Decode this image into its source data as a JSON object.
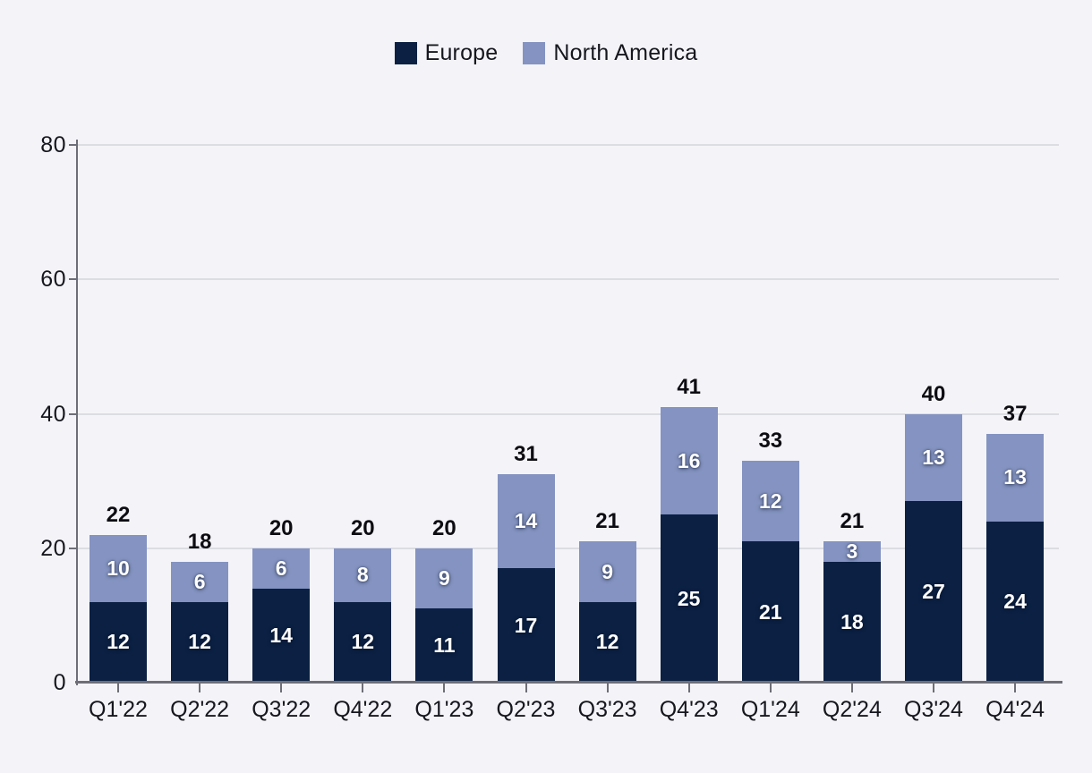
{
  "colors": {
    "background": "#f4f4f8",
    "gridline": "#dcdce3",
    "axis": "#6e6e78",
    "axis_label": "#16161e",
    "total_label": "#0c0c12",
    "segment_label": "#ffffff",
    "europe": "#0b2043",
    "north_america": "#8493c1"
  },
  "chart_data": {
    "type": "bar",
    "stacked": true,
    "title": "",
    "xlabel": "",
    "ylabel": "",
    "categories": [
      "Q1'22",
      "Q2'22",
      "Q3'22",
      "Q4'22",
      "Q1'23",
      "Q2'23",
      "Q3'23",
      "Q4'23",
      "Q1'24",
      "Q2'24",
      "Q3'24",
      "Q4'24"
    ],
    "series": [
      {
        "name": "Europe",
        "color": "#0b2043",
        "values": [
          12,
          12,
          14,
          12,
          11,
          17,
          12,
          25,
          21,
          18,
          27,
          24
        ]
      },
      {
        "name": "North America",
        "color": "#8493c1",
        "values": [
          10,
          6,
          6,
          8,
          9,
          14,
          9,
          16,
          12,
          3,
          13,
          13
        ]
      }
    ],
    "totals": [
      22,
      18,
      20,
      20,
      20,
      31,
      21,
      41,
      33,
      21,
      40,
      37
    ],
    "ylim": [
      0,
      80
    ],
    "yticks": [
      0,
      20,
      40,
      60,
      80
    ],
    "grid": true,
    "legend_position": "top"
  }
}
